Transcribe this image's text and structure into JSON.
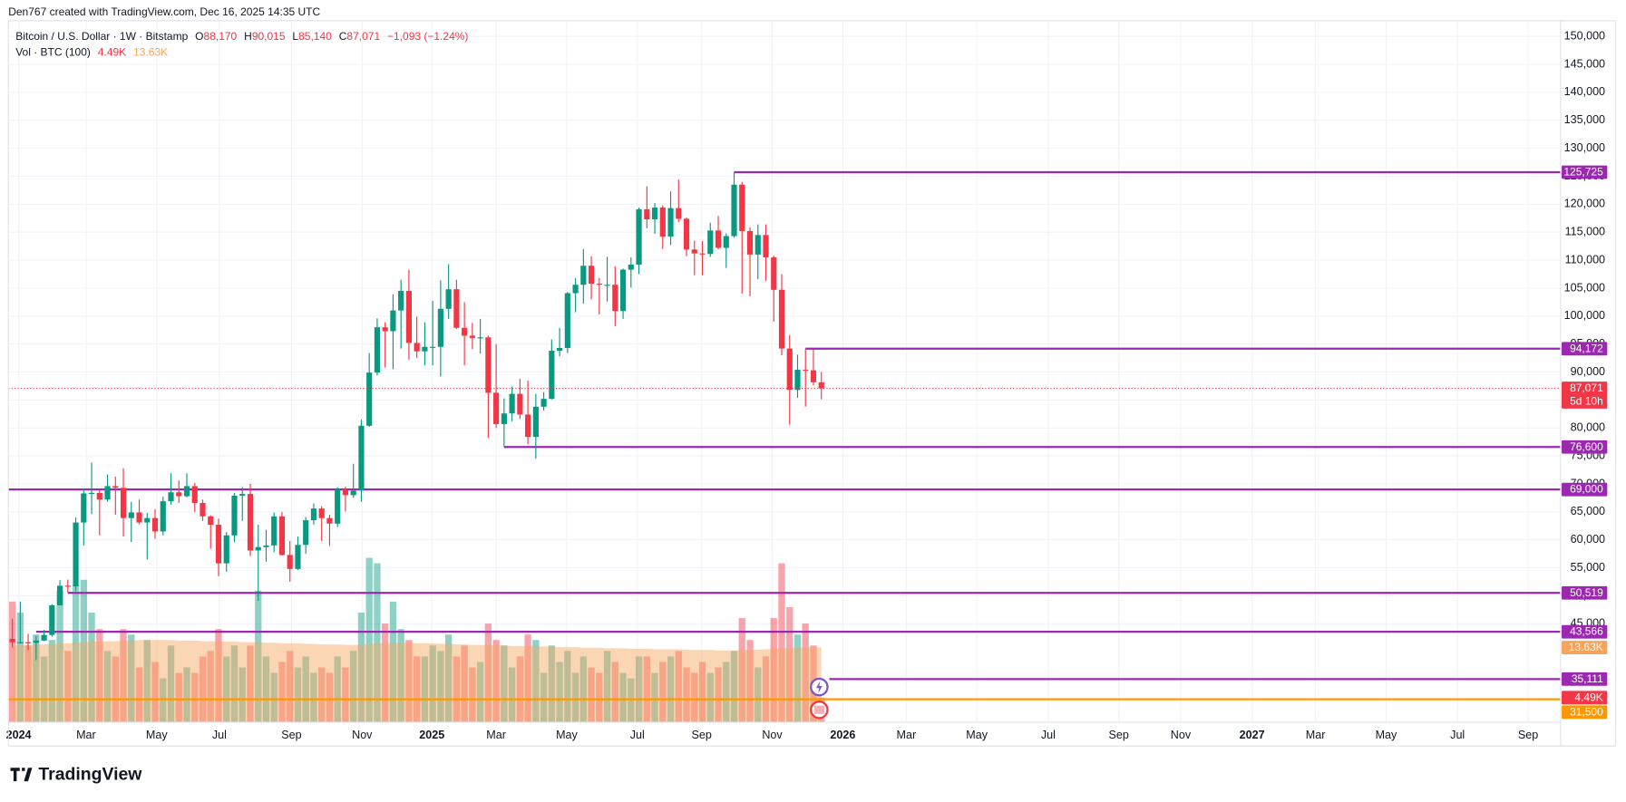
{
  "header": {
    "attribution": "Den767 created with TradingView.com, Dec 16, 2025 14:35 UTC",
    "brand": "TradingView"
  },
  "chart_data": {
    "type": "candlestick",
    "title": "Bitcoin / U.S. Dollar · 1W · Bitstamp",
    "legend": {
      "o": "O",
      "open": "88,170",
      "h": "H",
      "high": "90,015",
      "l": "L",
      "low": "85,140",
      "c": "C",
      "close": "87,071",
      "change": "−1,093 (−1.24%)"
    },
    "up_color": "#089981",
    "down_color": "#f23645",
    "x": [
      0,
      1,
      2,
      3,
      4,
      5,
      6,
      7,
      8,
      9,
      10,
      11,
      12,
      13,
      14,
      15,
      16,
      17,
      18,
      19,
      20,
      21,
      22,
      23,
      24,
      25,
      26,
      27,
      28,
      29,
      30,
      31,
      32,
      33,
      34,
      35,
      36,
      37,
      38,
      39,
      40,
      41,
      42,
      43,
      44,
      45,
      46,
      47,
      48,
      49,
      50,
      51,
      52,
      53,
      54,
      55,
      56,
      57,
      58,
      59,
      60,
      61,
      62,
      63,
      64,
      65,
      66,
      67,
      68,
      69,
      70,
      71,
      72,
      73,
      74,
      75,
      76,
      77,
      78,
      79,
      80,
      81,
      82,
      83,
      84,
      85,
      86,
      87,
      88,
      89,
      90,
      91,
      92,
      93,
      94,
      95,
      96,
      97,
      98,
      99,
      100,
      101,
      102
    ],
    "open": [
      42300,
      41700,
      41700,
      41600,
      42000,
      43000,
      48300,
      51800,
      51700,
      63100,
      68300,
      68400,
      67200,
      69600,
      69300,
      63900,
      64900,
      63100,
      63900,
      61500,
      66900,
      68500,
      67800,
      69600,
      66600,
      64200,
      62700,
      55800,
      60800,
      67900,
      68200,
      58100,
      58700,
      59000,
      64200,
      57300,
      54800,
      59100,
      63500,
      65600,
      63900,
      62900,
      69000,
      68000,
      68800,
      80400,
      89900,
      98000,
      97300,
      101000,
      104500,
      95200,
      93700,
      94500,
      94500,
      101300,
      104800,
      97900,
      96500,
      96100,
      96200,
      86300,
      80700,
      82600,
      86100,
      82400,
      78400,
      83800,
      85200,
      93800,
      94300,
      104100,
      105600,
      109000,
      105800,
      105600,
      105600,
      100900,
      108300,
      109200,
      119100,
      117300,
      119400,
      114200,
      119300,
      117400,
      111900,
      111200,
      111100,
      115300,
      112200,
      114300,
      123500,
      115200,
      111000,
      114500,
      110500,
      104700,
      94200,
      86800,
      90400,
      90300,
      88170
    ],
    "high": [
      45900,
      48970,
      43200,
      42850,
      43900,
      48500,
      52800,
      52900,
      64000,
      69200,
      73800,
      68900,
      71700,
      71300,
      72800,
      66800,
      67200,
      64800,
      65500,
      67700,
      71900,
      70600,
      71900,
      70200,
      67200,
      64400,
      63800,
      61400,
      68400,
      69400,
      70000,
      62700,
      61800,
      64900,
      65000,
      59800,
      60600,
      64100,
      66500,
      66000,
      64500,
      69400,
      69500,
      73600,
      81500,
      93400,
      99600,
      98900,
      103900,
      106500,
      108300,
      99900,
      98900,
      102700,
      106400,
      109300,
      106500,
      102500,
      98800,
      99500,
      96500,
      95000,
      85300,
      87400,
      88800,
      88500,
      86100,
      86400,
      95800,
      97900,
      104300,
      106800,
      112000,
      110700,
      106800,
      110600,
      108900,
      108500,
      110500,
      119400,
      123200,
      120200,
      119800,
      122300,
      124400,
      117600,
      113500,
      113400,
      116700,
      117900,
      114800,
      125725,
      124000,
      115900,
      116400,
      116400,
      110800,
      107500,
      96600,
      93100,
      94172,
      94100,
      90015
    ],
    "low": [
      40750,
      41500,
      40300,
      38500,
      41900,
      42700,
      48300,
      50600,
      50900,
      59000,
      64600,
      60800,
      66800,
      64500,
      60600,
      59600,
      62800,
      56500,
      60200,
      60800,
      66300,
      66600,
      67600,
      65000,
      63400,
      58400,
      53500,
      54300,
      59600,
      63400,
      57100,
      49100,
      56100,
      57800,
      57200,
      52500,
      54600,
      57500,
      62700,
      59800,
      58900,
      62300,
      65100,
      67500,
      66800,
      80200,
      89400,
      90800,
      90500,
      94200,
      92200,
      92500,
      91200,
      91200,
      89200,
      99500,
      97700,
      91200,
      94100,
      93300,
      78200,
      80000,
      76600,
      81200,
      81600,
      77100,
      74500,
      83100,
      85100,
      92800,
      93400,
      100700,
      102200,
      103000,
      100300,
      102600,
      98200,
      99500,
      105100,
      107500,
      115700,
      114700,
      112000,
      112700,
      116800,
      110700,
      107300,
      107300,
      110600,
      111900,
      108600,
      114000,
      104000,
      103500,
      106600,
      106300,
      99000,
      93000,
      80600,
      85400,
      83800,
      87600,
      85140
    ],
    "close": [
      41700,
      41700,
      41600,
      42000,
      43000,
      48300,
      51800,
      51700,
      63100,
      68300,
      68400,
      67200,
      69600,
      69300,
      63900,
      64900,
      63100,
      63900,
      61500,
      66900,
      68500,
      67800,
      69600,
      66600,
      64200,
      62700,
      55800,
      60800,
      67900,
      68200,
      58100,
      58700,
      59000,
      64200,
      57300,
      54800,
      59100,
      63500,
      65600,
      63900,
      62900,
      69000,
      68000,
      68800,
      80400,
      89900,
      98000,
      97300,
      101000,
      104500,
      95200,
      93700,
      94500,
      94500,
      101300,
      104800,
      97900,
      96500,
      96100,
      96200,
      86300,
      80700,
      82600,
      86100,
      82400,
      78400,
      83800,
      85200,
      93800,
      94300,
      104100,
      105600,
      109000,
      105800,
      105600,
      105600,
      100900,
      108300,
      109200,
      119100,
      117300,
      119400,
      114200,
      119300,
      117400,
      111900,
      111200,
      111100,
      115300,
      112200,
      114300,
      123500,
      115200,
      111000,
      114500,
      110500,
      104700,
      94200,
      86800,
      90400,
      90300,
      88170,
      87071
    ],
    "volume": {
      "name": "Vol · BTC (100)",
      "last_label": "4.49K",
      "ma_last_label": "13.63K",
      "ma_color": "#f7a35c",
      "y2lim": [
        0,
        128000
      ],
      "values": [
        22000,
        20000,
        14000,
        16000,
        12000,
        15000,
        24000,
        13000,
        25000,
        26000,
        20000,
        17000,
        13000,
        12000,
        17000,
        16000,
        10000,
        15000,
        11000,
        8000,
        14000,
        9000,
        10000,
        9000,
        12000,
        13000,
        17000,
        12000,
        14000,
        10000,
        14000,
        24000,
        12000,
        9000,
        11000,
        13000,
        10000,
        12000,
        9000,
        10000,
        9000,
        12000,
        10000,
        13000,
        20000,
        30000,
        29000,
        18000,
        22000,
        17000,
        15000,
        12000,
        12000,
        14000,
        13000,
        16000,
        12000,
        14000,
        10000,
        11000,
        18000,
        15000,
        14000,
        10000,
        12000,
        16000,
        15000,
        9000,
        14000,
        11000,
        13000,
        9000,
        12000,
        10000,
        9000,
        13000,
        11000,
        9000,
        8000,
        12000,
        12000,
        9000,
        11000,
        12000,
        13000,
        10000,
        9000,
        11000,
        9000,
        10000,
        11000,
        13000,
        19000,
        15000,
        10000,
        12000,
        19000,
        29000,
        21000,
        16000,
        18000,
        14000,
        4490
      ],
      "ma_values": [
        14000,
        14100,
        14100,
        14200,
        14200,
        14300,
        14400,
        14400,
        14500,
        14600,
        14700,
        14700,
        14800,
        14800,
        14900,
        14900,
        15000,
        15000,
        15000,
        15000,
        15000,
        14900,
        14900,
        14900,
        14800,
        14800,
        14800,
        14700,
        14700,
        14600,
        14600,
        14600,
        14500,
        14500,
        14400,
        14400,
        14400,
        14300,
        14300,
        14200,
        14200,
        14200,
        14100,
        14100,
        14200,
        14300,
        14400,
        14400,
        14500,
        14500,
        14500,
        14400,
        14400,
        14400,
        14300,
        14300,
        14200,
        14200,
        14100,
        14100,
        14100,
        14000,
        14000,
        13900,
        13900,
        13900,
        13800,
        13800,
        13800,
        13700,
        13700,
        13700,
        13600,
        13600,
        13600,
        13500,
        13500,
        13500,
        13400,
        13400,
        13400,
        13300,
        13300,
        13300,
        13300,
        13200,
        13200,
        13200,
        13200,
        13100,
        13100,
        13100,
        13200,
        13200,
        13200,
        13300,
        13400,
        13500,
        13600,
        13600,
        13700,
        13700,
        13630
      ]
    },
    "levels": [
      {
        "value": 125725,
        "label": "125,725",
        "start": 91,
        "color": "#9c27b0"
      },
      {
        "value": 94172,
        "label": "94,172",
        "start": 100,
        "color": "#9c27b0"
      },
      {
        "value": 76600,
        "label": "76,600",
        "start": 62,
        "color": "#9c27b0"
      },
      {
        "value": 69000,
        "label": "69,000",
        "start": -0.5,
        "color": "#9c27b0"
      },
      {
        "value": 50519,
        "label": "50,519",
        "start": 7,
        "color": "#9c27b0"
      },
      {
        "value": 43566,
        "label": "43,566",
        "start": 3,
        "color": "#9c27b0"
      },
      {
        "value": 35111,
        "label": "35,111",
        "start": 103,
        "color": "#9c27b0"
      },
      {
        "value": 31500,
        "label": "31,500",
        "start": -0.5,
        "color": "#ff9800"
      }
    ],
    "last_price": {
      "value": 87071,
      "label": "87,071",
      "countdown": "5d 10h",
      "color": "#f23645"
    },
    "xlim": [
      -0.5,
      195.2
    ],
    "xticks": [
      {
        "value": 0.8,
        "label": "2024"
      },
      {
        "value": 9.3,
        "label": "Mar"
      },
      {
        "value": 18.2,
        "label": "May"
      },
      {
        "value": 26.1,
        "label": "Jul"
      },
      {
        "value": 35.2,
        "label": "Sep"
      },
      {
        "value": 44.1,
        "label": "Nov"
      },
      {
        "value": 52.9,
        "label": "2025"
      },
      {
        "value": 61.0,
        "label": "Mar"
      },
      {
        "value": 69.9,
        "label": "May"
      },
      {
        "value": 78.8,
        "label": "Jul"
      },
      {
        "value": 86.9,
        "label": "Sep"
      },
      {
        "value": 95.8,
        "label": "Nov"
      },
      {
        "value": 104.7,
        "label": "2026"
      },
      {
        "value": 112.7,
        "label": "Mar"
      },
      {
        "value": 121.6,
        "label": "May"
      },
      {
        "value": 130.6,
        "label": "Jul"
      },
      {
        "value": 139.5,
        "label": "Sep"
      },
      {
        "value": 147.3,
        "label": "Nov"
      },
      {
        "value": 156.3,
        "label": "2027"
      },
      {
        "value": 164.3,
        "label": "Mar"
      },
      {
        "value": 173.2,
        "label": "May"
      },
      {
        "value": 182.2,
        "label": "Jul"
      },
      {
        "value": 191.1,
        "label": "Sep"
      }
    ],
    "ylim": [
      27400,
      152800
    ],
    "yticks": [
      {
        "value": 45000,
        "label": "45,000"
      },
      {
        "value": 50000,
        "label": "50,000"
      },
      {
        "value": 55000,
        "label": "55,000"
      },
      {
        "value": 60000,
        "label": "60,000"
      },
      {
        "value": 65000,
        "label": "65,000"
      },
      {
        "value": 70000,
        "label": "70,000"
      },
      {
        "value": 75000,
        "label": "75,000"
      },
      {
        "value": 80000,
        "label": "80,000"
      },
      {
        "value": 85000,
        "label": "85,000"
      },
      {
        "value": 90000,
        "label": "90,000"
      },
      {
        "value": 95000,
        "label": "95,000"
      },
      {
        "value": 100000,
        "label": "100,000"
      },
      {
        "value": 105000,
        "label": "105,000"
      },
      {
        "value": 110000,
        "label": "110,000"
      },
      {
        "value": 115000,
        "label": "115,000"
      },
      {
        "value": 120000,
        "label": "120,000"
      },
      {
        "value": 125000,
        "label": "125,000"
      },
      {
        "value": 130000,
        "label": "130,000"
      },
      {
        "value": 135000,
        "label": "135,000"
      },
      {
        "value": 140000,
        "label": "140,000"
      },
      {
        "value": 145000,
        "label": "145,000"
      },
      {
        "value": 150000,
        "label": "150,000"
      }
    ],
    "grid": true
  }
}
